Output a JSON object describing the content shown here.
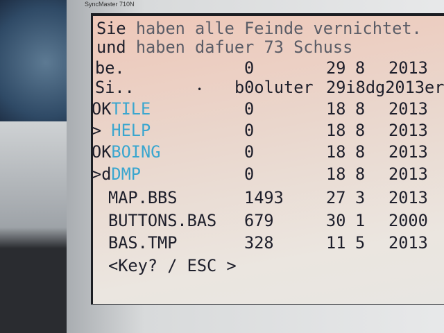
{
  "monitor": {
    "brand": "SyncMaster 710N"
  },
  "message": {
    "line1_a": "Sie",
    "line1_b": " haben alle Feinde vernichtet.",
    "line2_a": "und",
    "line2_b": " haben dafuer 73 Schuss"
  },
  "rows": [
    {
      "prefix": "be.",
      "name": "",
      "size": "0",
      "day": "29",
      "month": "8",
      "year": "2013"
    },
    {
      "prefix": "Si..",
      "name": "",
      "size": "b0oluter",
      "day": "29i8dg2013er",
      "month": "",
      "year": ""
    },
    {
      "prefix": "OK",
      "name": "TILE",
      "size": "0",
      "day": "18",
      "month": "8",
      "year": "2013"
    },
    {
      "prefix": ">",
      "name": " HELP",
      "size": "0",
      "day": "18",
      "month": "8",
      "year": "2013"
    },
    {
      "prefix": "OK",
      "name": "BOING",
      "size": "0",
      "day": "18",
      "month": "8",
      "year": "2013"
    },
    {
      "prefix": ">d",
      "name": "DMP",
      "size": "0",
      "day": "18",
      "month": "8",
      "year": "2013"
    },
    {
      "prefix": "",
      "name": "MAP.BBS",
      "size": "1493",
      "day": "27",
      "month": "3",
      "year": "2013"
    },
    {
      "prefix": "",
      "name": "BUTTONS.BAS",
      "size": "679",
      "day": "30",
      "month": "1",
      "year": "2000"
    },
    {
      "prefix": "",
      "name": "BAS.TMP",
      "size": "328",
      "day": "11",
      "month": "5",
      "year": "2013"
    }
  ],
  "prompt": "<Key? / ESC >",
  "colors": {
    "text": "#1d1e2a",
    "dir": "#3aa6cf",
    "background": "#ebe6e0"
  }
}
